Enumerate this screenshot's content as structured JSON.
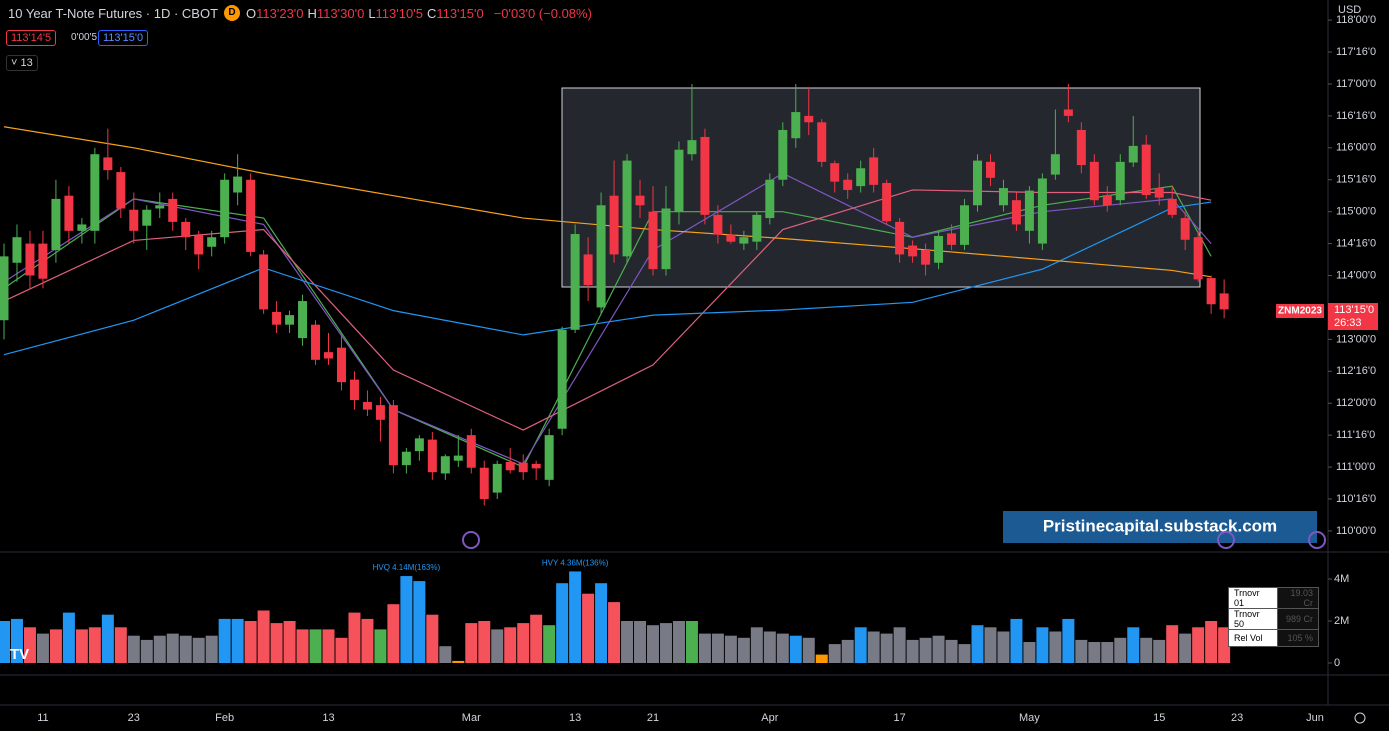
{
  "chart_data": {
    "type": "candlestick",
    "title": "10 Year T-Note Futures · 1D · CBOT",
    "ylim": [
      109.67,
      118.315
    ],
    "yticks": [
      {
        "value": 110,
        "label": "110'00'0"
      },
      {
        "value": 110.5,
        "label": "110'16'0"
      },
      {
        "value": 111,
        "label": "111'00'0"
      },
      {
        "value": 111.5,
        "label": "111'16'0"
      },
      {
        "value": 112,
        "label": "112'00'0"
      },
      {
        "value": 112.5,
        "label": "112'16'0"
      },
      {
        "value": 113,
        "label": "113'00'0"
      },
      {
        "value": 113.5,
        "label": "113'16'0"
      },
      {
        "value": 114,
        "label": "114'00'0"
      },
      {
        "value": 114.5,
        "label": "114'16'0"
      },
      {
        "value": 115,
        "label": "115'00'0"
      },
      {
        "value": 115.5,
        "label": "115'16'0"
      },
      {
        "value": 116,
        "label": "116'00'0"
      },
      {
        "value": 116.5,
        "label": "116'16'0"
      },
      {
        "value": 117,
        "label": "117'00'0"
      },
      {
        "value": 117.5,
        "label": "117'16'0"
      },
      {
        "value": 118,
        "label": "118'00'0"
      }
    ],
    "up_color": "#4caf50",
    "down_color": "#f23645",
    "candles": [
      [
        113.3,
        114.5,
        113.0,
        114.3
      ],
      [
        114.2,
        114.8,
        113.9,
        114.6
      ],
      [
        114.5,
        114.7,
        113.8,
        114.0
      ],
      [
        114.5,
        114.7,
        113.8,
        113.95
      ],
      [
        114.4,
        115.5,
        114.2,
        115.2
      ],
      [
        115.25,
        115.4,
        114.5,
        114.7
      ],
      [
        114.7,
        114.9,
        114.5,
        114.8
      ],
      [
        114.7,
        116.0,
        114.5,
        115.9
      ],
      [
        115.85,
        116.3,
        115.5,
        115.65
      ],
      [
        115.62,
        115.7,
        114.9,
        115.05
      ],
      [
        115.03,
        115.3,
        114.5,
        114.7
      ],
      [
        114.78,
        115.1,
        114.4,
        115.03
      ],
      [
        115.05,
        115.3,
        114.9,
        115.1
      ],
      [
        115.2,
        115.3,
        114.7,
        114.84
      ],
      [
        114.84,
        114.9,
        114.4,
        114.6
      ],
      [
        114.63,
        114.7,
        114.1,
        114.33
      ],
      [
        114.45,
        114.7,
        114.3,
        114.6
      ],
      [
        114.6,
        115.6,
        114.5,
        115.5
      ],
      [
        115.3,
        115.9,
        115.1,
        115.55
      ],
      [
        115.5,
        115.6,
        114.3,
        114.37
      ],
      [
        114.33,
        114.4,
        113.4,
        113.47
      ],
      [
        113.43,
        113.6,
        113.1,
        113.23
      ],
      [
        113.23,
        113.45,
        113.1,
        113.38
      ],
      [
        113.02,
        113.7,
        112.9,
        113.6
      ],
      [
        113.23,
        113.3,
        112.6,
        112.68
      ],
      [
        112.8,
        113.1,
        112.6,
        112.7
      ],
      [
        112.87,
        113.1,
        112.2,
        112.33
      ],
      [
        112.37,
        112.5,
        111.9,
        112.05
      ],
      [
        112.02,
        112.2,
        111.8,
        111.9
      ],
      [
        111.97,
        112.1,
        111.4,
        111.74
      ],
      [
        111.97,
        112.05,
        110.9,
        111.03
      ],
      [
        111.03,
        111.3,
        110.9,
        111.24
      ],
      [
        111.25,
        111.5,
        111.1,
        111.45
      ],
      [
        111.43,
        111.55,
        110.8,
        110.92
      ],
      [
        110.9,
        111.2,
        110.8,
        111.17
      ],
      [
        111.1,
        111.5,
        111.0,
        111.18
      ],
      [
        111.5,
        111.6,
        110.9,
        110.99
      ],
      [
        110.99,
        111.1,
        110.4,
        110.5
      ],
      [
        110.6,
        111.1,
        110.5,
        111.05
      ],
      [
        111.08,
        111.3,
        110.9,
        110.95
      ],
      [
        111.07,
        111.2,
        110.8,
        110.92
      ],
      [
        111.05,
        111.1,
        110.8,
        110.98
      ],
      [
        110.8,
        111.6,
        110.7,
        111.5
      ],
      [
        111.6,
        113.2,
        111.5,
        113.15
      ],
      [
        113.15,
        114.8,
        113.1,
        114.65
      ],
      [
        114.33,
        114.6,
        113.6,
        113.85
      ],
      [
        113.5,
        115.3,
        113.4,
        115.1
      ],
      [
        115.25,
        115.8,
        114.2,
        114.33
      ],
      [
        114.3,
        115.9,
        114.2,
        115.8
      ],
      [
        115.25,
        115.5,
        114.9,
        115.1
      ],
      [
        115.0,
        115.4,
        114.0,
        114.1
      ],
      [
        114.1,
        115.4,
        114.0,
        115.05
      ],
      [
        115.0,
        116.1,
        114.8,
        115.97
      ],
      [
        115.9,
        117.0,
        115.8,
        116.12
      ],
      [
        116.17,
        116.3,
        114.8,
        114.95
      ],
      [
        114.95,
        115.1,
        114.5,
        114.64
      ],
      [
        114.64,
        114.8,
        114.5,
        114.53
      ],
      [
        114.5,
        114.7,
        114.4,
        114.6
      ],
      [
        114.53,
        115.0,
        114.4,
        114.95
      ],
      [
        114.9,
        115.6,
        114.8,
        115.5
      ],
      [
        115.5,
        116.4,
        115.4,
        116.28
      ],
      [
        116.15,
        117.0,
        116.0,
        116.56
      ],
      [
        116.5,
        116.95,
        116.2,
        116.4
      ],
      [
        116.4,
        116.45,
        115.7,
        115.78
      ],
      [
        115.76,
        115.8,
        115.3,
        115.47
      ],
      [
        115.5,
        115.6,
        115.2,
        115.34
      ],
      [
        115.4,
        115.8,
        115.3,
        115.68
      ],
      [
        115.85,
        116.0,
        115.3,
        115.42
      ],
      [
        115.45,
        115.5,
        114.8,
        114.85
      ],
      [
        114.84,
        114.9,
        114.2,
        114.33
      ],
      [
        114.47,
        114.55,
        114.2,
        114.3
      ],
      [
        114.4,
        114.5,
        114.0,
        114.17
      ],
      [
        114.2,
        114.7,
        114.1,
        114.62
      ],
      [
        114.66,
        114.8,
        114.4,
        114.48
      ],
      [
        114.48,
        115.2,
        114.4,
        115.1
      ],
      [
        115.1,
        115.9,
        115.0,
        115.8
      ],
      [
        115.78,
        115.9,
        115.4,
        115.53
      ],
      [
        115.1,
        115.5,
        115.0,
        115.37
      ],
      [
        115.18,
        115.3,
        114.7,
        114.8
      ],
      [
        114.7,
        115.4,
        114.5,
        115.33
      ],
      [
        114.5,
        115.6,
        114.4,
        115.52
      ],
      [
        115.58,
        116.6,
        115.5,
        115.9
      ],
      [
        116.6,
        117.0,
        116.4,
        116.5
      ],
      [
        116.28,
        116.4,
        115.6,
        115.73
      ],
      [
        115.78,
        115.9,
        115.1,
        115.18
      ],
      [
        115.26,
        115.4,
        115.0,
        115.1
      ],
      [
        115.18,
        115.9,
        115.1,
        115.78
      ],
      [
        115.77,
        116.5,
        115.7,
        116.03
      ],
      [
        116.05,
        116.2,
        115.2,
        115.26
      ],
      [
        115.37,
        115.6,
        115.1,
        115.22
      ],
      [
        115.2,
        115.4,
        114.9,
        114.95
      ],
      [
        114.9,
        115.0,
        114.4,
        114.56
      ],
      [
        114.6,
        114.7,
        113.9,
        113.94
      ],
      [
        113.96,
        114.0,
        113.4,
        113.55
      ],
      [
        113.72,
        113.94,
        113.33,
        113.47
      ]
    ],
    "ma_lines": [
      {
        "color": "#4caf50",
        "index": [
          0,
          10,
          20,
          30,
          40,
          50,
          60,
          70,
          80,
          90,
          93
        ],
        "values": [
          113.8,
          115.2,
          114.9,
          111.9,
          111.0,
          115.0,
          115.0,
          114.6,
          115.1,
          115.4,
          114.3
        ]
      },
      {
        "color": "#7e57c2",
        "index": [
          0,
          10,
          20,
          30,
          40,
          50,
          60,
          70,
          80,
          90,
          93
        ],
        "values": [
          113.9,
          115.2,
          114.8,
          111.9,
          111.05,
          114.4,
          115.6,
          114.6,
          115.0,
          115.2,
          114.5
        ]
      },
      {
        "color": "#e0607e",
        "index": [
          0,
          10,
          20,
          30,
          40,
          50,
          60,
          70,
          80,
          90,
          93
        ],
        "values": [
          113.6,
          114.55,
          114.72,
          112.52,
          111.58,
          112.6,
          114.72,
          115.34,
          115.3,
          115.3,
          115.18
        ]
      },
      {
        "color": "#2196f3",
        "index": [
          0,
          10,
          20,
          30,
          40,
          50,
          60,
          70,
          80,
          90,
          93
        ],
        "values": [
          112.76,
          113.3,
          114.12,
          113.45,
          113.07,
          113.38,
          113.46,
          113.58,
          114.1,
          115.06,
          115.15
        ]
      },
      {
        "color": "#f7a21b",
        "index": [
          0,
          10,
          20,
          30,
          40,
          50,
          60,
          70,
          80,
          90,
          93
        ],
        "values": [
          116.33,
          116.0,
          115.6,
          115.25,
          114.9,
          114.72,
          114.58,
          114.42,
          114.25,
          114.08,
          113.98
        ]
      }
    ],
    "volume_ylim": [
      0,
      5
    ],
    "volume_ticks": [
      {
        "value": 4,
        "label": "4M"
      },
      {
        "value": 2,
        "label": "2M"
      },
      0
    ],
    "volume": [
      2.0,
      2.1,
      1.7,
      1.4,
      1.6,
      2.4,
      1.6,
      1.7,
      2.3,
      1.7,
      1.3,
      1.1,
      1.3,
      1.4,
      1.3,
      1.2,
      1.3,
      2.1,
      2.1,
      2.0,
      2.5,
      1.9,
      2.0,
      1.6,
      1.6,
      1.6,
      1.2,
      2.4,
      2.1,
      1.6,
      2.8,
      4.14,
      3.9,
      2.3,
      0.8,
      0.1,
      1.9,
      2.0,
      1.6,
      1.7,
      1.9,
      2.3,
      1.8,
      3.8,
      4.36,
      3.3,
      3.8,
      2.9,
      2.0,
      2.0,
      1.8,
      1.9,
      2.0,
      2.0,
      1.4,
      1.4,
      1.3,
      1.2,
      1.7,
      1.5,
      1.4,
      1.3,
      1.2,
      0.4,
      0.9,
      1.1,
      1.7,
      1.5,
      1.4,
      1.7,
      1.1,
      1.2,
      1.3,
      1.1,
      0.9,
      1.8,
      1.7,
      1.5,
      2.1,
      1.0,
      1.7,
      1.5,
      2.1,
      1.1,
      1.0,
      1.0,
      1.2,
      1.7,
      1.2,
      1.1,
      1.8,
      1.4,
      1.7,
      2.0,
      1.7
    ],
    "volume_codes": "bbrxrbrrbrxxxxxxxbbrrrrrgrrrrgrbbrxorrxrrrgbbrbrxxxxxgxxxxxxxbxoxxbxxxxxxxxbxxbxbxbxxxxbxxrxrrr",
    "volume_palette": {
      "b": "#2196f3",
      "r": "#f5525c",
      "x": "#787b86",
      "g": "#4caf50",
      "o": "#ff9800"
    },
    "volume_annotations": [
      {
        "index": 31,
        "label": "HVQ 4.14M(163%)"
      },
      {
        "index": 44,
        "label": "HVY 4.36M(136%)"
      }
    ],
    "time_labels": [
      {
        "index": 3,
        "label": "11"
      },
      {
        "index": 10,
        "label": "23"
      },
      {
        "index": 17,
        "label": "Feb"
      },
      {
        "index": 25,
        "label": "13"
      },
      {
        "index": 36,
        "label": "Mar"
      },
      {
        "index": 44,
        "label": "13"
      },
      {
        "index": 50,
        "label": "21"
      },
      {
        "index": 59,
        "label": "Apr"
      },
      {
        "index": 69,
        "label": "17"
      },
      {
        "index": 79,
        "label": "May"
      },
      {
        "index": 89,
        "label": "15"
      },
      {
        "index": 95,
        "label": "23"
      },
      {
        "index": 101,
        "label": "Jun"
      }
    ]
  },
  "header": {
    "interval_badge": "D",
    "ohlc": [
      {
        "key": "O",
        "value": "113'23'0"
      },
      {
        "key": "H",
        "value": "113'30'0"
      },
      {
        "key": "L",
        "value": "113'10'5"
      },
      {
        "key": "C",
        "value": "113'15'0"
      }
    ],
    "change": "−0'03'0 (−0.08%)",
    "bid": "113'14'5",
    "spread": "0'00'5",
    "ask": "113'15'0",
    "indicator_count": "13"
  },
  "axis": {
    "currency": "USD",
    "symbol": "ZNM2023",
    "last_price": "113'15'0",
    "countdown": "26:33"
  },
  "watermark": "Pristinecapital.substack.com",
  "stats_table": [
    [
      "Trnovr 01",
      "19.03 Cr"
    ],
    [
      "Trnovr 50",
      "989 Cr"
    ],
    [
      "Rel Vol",
      "105 %"
    ]
  ]
}
